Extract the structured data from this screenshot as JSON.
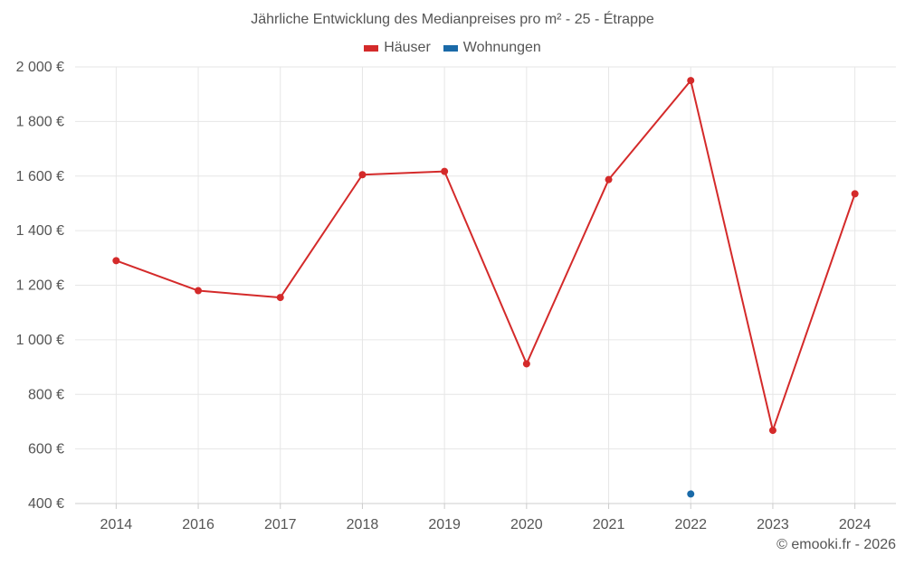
{
  "chart_data": {
    "type": "line",
    "title": "Jährliche Entwicklung des Medianpreises pro m² - 25 - Étrappe",
    "categories": [
      "2014",
      "2016",
      "2017",
      "2018",
      "2019",
      "2020",
      "2021",
      "2022",
      "2023",
      "2024"
    ],
    "series": [
      {
        "name": "Häuser",
        "color": "#d42a2a",
        "values": [
          1290,
          1180,
          1155,
          1605,
          1617,
          912,
          1587,
          1950,
          668,
          1535
        ]
      },
      {
        "name": "Wohnungen",
        "color": "#1a6aa8",
        "values": [
          null,
          null,
          null,
          null,
          null,
          null,
          null,
          435,
          null,
          null
        ]
      }
    ],
    "ylim": [
      400,
      2000
    ],
    "yticks": [
      400,
      600,
      800,
      1000,
      1200,
      1400,
      1600,
      1800,
      2000
    ],
    "ytick_labels": [
      "400 €",
      "600 €",
      "800 €",
      "1 000 €",
      "1 200 €",
      "1 400 €",
      "1 600 €",
      "1 800 €",
      "2 000 €"
    ],
    "xlabel": "",
    "ylabel": "",
    "grid": true,
    "legend_position": "top-center"
  },
  "credit": "© emooki.fr - 2026"
}
